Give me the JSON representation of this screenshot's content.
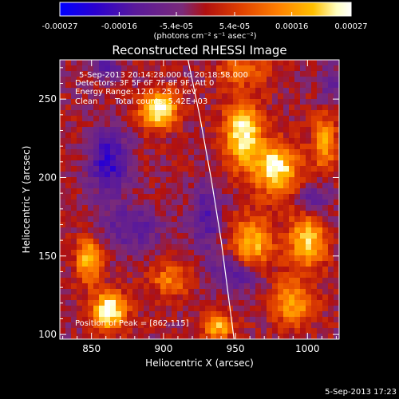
{
  "chart_data": {
    "type": "heatmap",
    "title": "Reconstructed RHESSI Image",
    "xlabel": "Heliocentric X (arcsec)",
    "ylabel": "Heliocentric Y (arcsec)",
    "xlim": [
      828,
      1022
    ],
    "ylim": [
      97,
      275
    ],
    "xticks": [
      850,
      900,
      950,
      1000
    ],
    "yticks": [
      100,
      150,
      200,
      250
    ],
    "colorbar": {
      "ticks": [
        "-0.00027",
        "-0.00016",
        "-5.4e-05",
        "5.4e-05",
        "0.00016",
        "0.00027"
      ],
      "tick_values": [
        -0.00027,
        -0.00016,
        -5.4e-05,
        5.4e-05,
        0.00016,
        0.00027
      ],
      "range": [
        -0.00027,
        0.00027
      ],
      "units": "(photons cm⁻² s⁻¹ asec⁻²)",
      "colormap": [
        "#0000ff",
        "#2a00d0",
        "#5a1a9a",
        "#7a2a7a",
        "#b01010",
        "#e04000",
        "#ff8000",
        "#ffc000",
        "#ffffc0",
        "#ffffff"
      ]
    },
    "annotations": [
      "5-Sep-2013 20:14:28.000 to 20:18:58.000",
      "Detectors: 3F 5F 6F 7F 8F 9F, Att 0",
      "Energy Range: 12.0 - 25.0 keV",
      "Clean",
      "Total counts: 5.42E+03",
      "Position of Peak = [862,115]"
    ],
    "limb_curve": {
      "x": [
        917,
        925,
        933,
        940,
        945,
        949
      ],
      "y": [
        275,
        240,
        200,
        160,
        125,
        97
      ]
    },
    "sources": [
      {
        "x": 897,
        "y": 243,
        "amp": 1.25,
        "sx": 9,
        "sy": 8
      },
      {
        "x": 862,
        "y": 115,
        "amp": 1.35,
        "sx": 8,
        "sy": 8
      },
      {
        "x": 955,
        "y": 228,
        "amp": 1.2,
        "sx": 9,
        "sy": 14
      },
      {
        "x": 978,
        "y": 206,
        "amp": 1.2,
        "sx": 11,
        "sy": 11
      },
      {
        "x": 962,
        "y": 158,
        "amp": 0.9,
        "sx": 10,
        "sy": 12
      },
      {
        "x": 1000,
        "y": 160,
        "amp": 1.0,
        "sx": 9,
        "sy": 12
      },
      {
        "x": 848,
        "y": 148,
        "amp": 0.95,
        "sx": 6,
        "sy": 10
      },
      {
        "x": 1012,
        "y": 222,
        "amp": 0.8,
        "sx": 6,
        "sy": 12
      },
      {
        "x": 938,
        "y": 105,
        "amp": 0.9,
        "sx": 7,
        "sy": 6
      },
      {
        "x": 990,
        "y": 120,
        "amp": 0.8,
        "sx": 10,
        "sy": 10
      },
      {
        "x": 905,
        "y": 135,
        "amp": 0.6,
        "sx": 10,
        "sy": 7
      },
      {
        "x": 955,
        "y": 268,
        "amp": 0.6,
        "sx": 12,
        "sy": 6
      },
      {
        "x": 860,
        "y": 270,
        "amp": -0.6,
        "sx": 7,
        "sy": 5
      },
      {
        "x": 862,
        "y": 210,
        "amp": -0.8,
        "sx": 10,
        "sy": 14
      },
      {
        "x": 878,
        "y": 168,
        "amp": -0.5,
        "sx": 16,
        "sy": 10
      },
      {
        "x": 930,
        "y": 175,
        "amp": -0.55,
        "sx": 8,
        "sy": 16
      },
      {
        "x": 950,
        "y": 138,
        "amp": -0.6,
        "sx": 12,
        "sy": 8
      },
      {
        "x": 1005,
        "y": 185,
        "amp": -0.5,
        "sx": 8,
        "sy": 8
      },
      {
        "x": 1018,
        "y": 260,
        "amp": -0.4,
        "sx": 7,
        "sy": 9
      }
    ]
  },
  "footer": {
    "timestamp": "5-Sep-2013 17:23"
  }
}
